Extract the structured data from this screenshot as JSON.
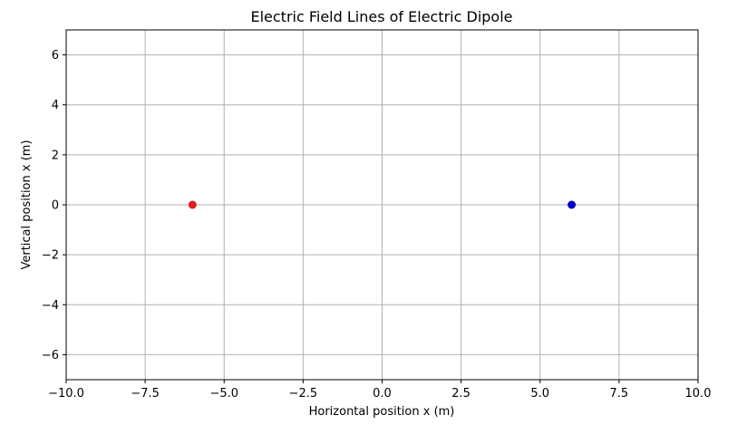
{
  "chart_data": {
    "type": "scatter",
    "title": "Electric Field Lines of Electric Dipole",
    "xlabel": "Horizontal position x (m)",
    "ylabel": "Vertical position x (m)",
    "xlim": [
      -10,
      10
    ],
    "ylim": [
      -7,
      7
    ],
    "xticks": [
      -10.0,
      -7.5,
      -5.0,
      -2.5,
      0.0,
      2.5,
      5.0,
      7.5,
      10.0
    ],
    "xtick_labels": [
      "−10.0",
      "−7.5",
      "−5.0",
      "−2.5",
      "0.0",
      "2.5",
      "5.0",
      "7.5",
      "10.0"
    ],
    "yticks": [
      -6,
      -4,
      -2,
      0,
      2,
      4,
      6
    ],
    "ytick_labels": [
      "−6",
      "−4",
      "−2",
      "0",
      "2",
      "4",
      "6"
    ],
    "grid": true,
    "points": [
      {
        "x": -6,
        "y": 0,
        "color": "#e41a1c"
      },
      {
        "x": 6,
        "y": 0,
        "color": "#0000cc"
      }
    ]
  }
}
